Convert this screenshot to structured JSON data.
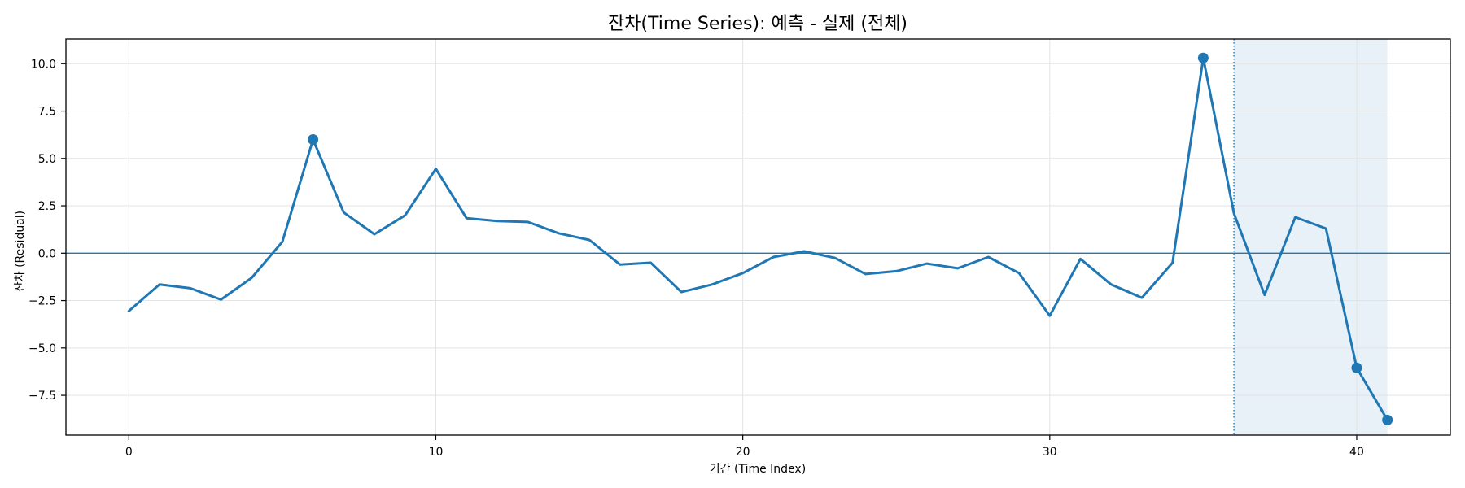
{
  "chart_data": {
    "type": "line",
    "title": "잔차(Time Series): 예측 - 실제 (전체)",
    "xlabel": "기간 (Time Index)",
    "ylabel": "잔차 (Residual)",
    "xlim": [
      -2.05,
      43.05
    ],
    "ylim": [
      -9.6,
      11.3
    ],
    "xticks": [
      0,
      10,
      20,
      30,
      40
    ],
    "xtick_labels": [
      "0",
      "10",
      "20",
      "30",
      "40"
    ],
    "yticks": [
      -7.5,
      -5.0,
      -2.5,
      0.0,
      2.5,
      5.0,
      7.5,
      10.0
    ],
    "ytick_labels": [
      "−7.5",
      "−5.0",
      "−2.5",
      "0.0",
      "2.5",
      "5.0",
      "7.5",
      "10.0"
    ],
    "grid": true,
    "zero_line": 0,
    "forecast_start": 36,
    "forecast_end": 41,
    "colors": {
      "line": "#1f77b4",
      "shade": "#e8f1f8",
      "grid": "#e3e3e3",
      "axis": "#000000"
    },
    "series": [
      {
        "x": [
          0,
          1,
          2,
          3,
          4,
          5,
          6,
          7,
          8,
          9,
          10,
          11,
          12,
          13,
          14,
          15,
          16,
          17,
          18,
          19,
          20,
          21,
          22,
          23,
          24,
          25,
          26,
          27,
          28,
          29,
          30,
          31,
          32,
          33,
          34,
          35,
          36,
          37,
          38,
          39,
          40,
          41
        ],
        "values": [
          -3.05,
          -1.65,
          -1.85,
          -2.45,
          -1.3,
          0.6,
          6.0,
          2.15,
          1.0,
          2.0,
          4.45,
          1.85,
          1.7,
          1.65,
          1.05,
          0.7,
          -0.6,
          -0.5,
          -2.05,
          -1.65,
          -1.05,
          -0.2,
          0.1,
          -0.25,
          -1.1,
          -0.95,
          -0.55,
          -0.8,
          -0.2,
          -1.05,
          -3.3,
          -0.3,
          -1.65,
          -2.35,
          -0.5,
          10.3,
          2.1,
          -2.2,
          1.9,
          1.3,
          -6.05,
          -8.8
        ]
      }
    ],
    "highlight_points": [
      {
        "x": 6,
        "y": 6.0
      },
      {
        "x": 35,
        "y": 10.3
      },
      {
        "x": 40,
        "y": -6.05
      },
      {
        "x": 41,
        "y": -8.8
      }
    ]
  }
}
